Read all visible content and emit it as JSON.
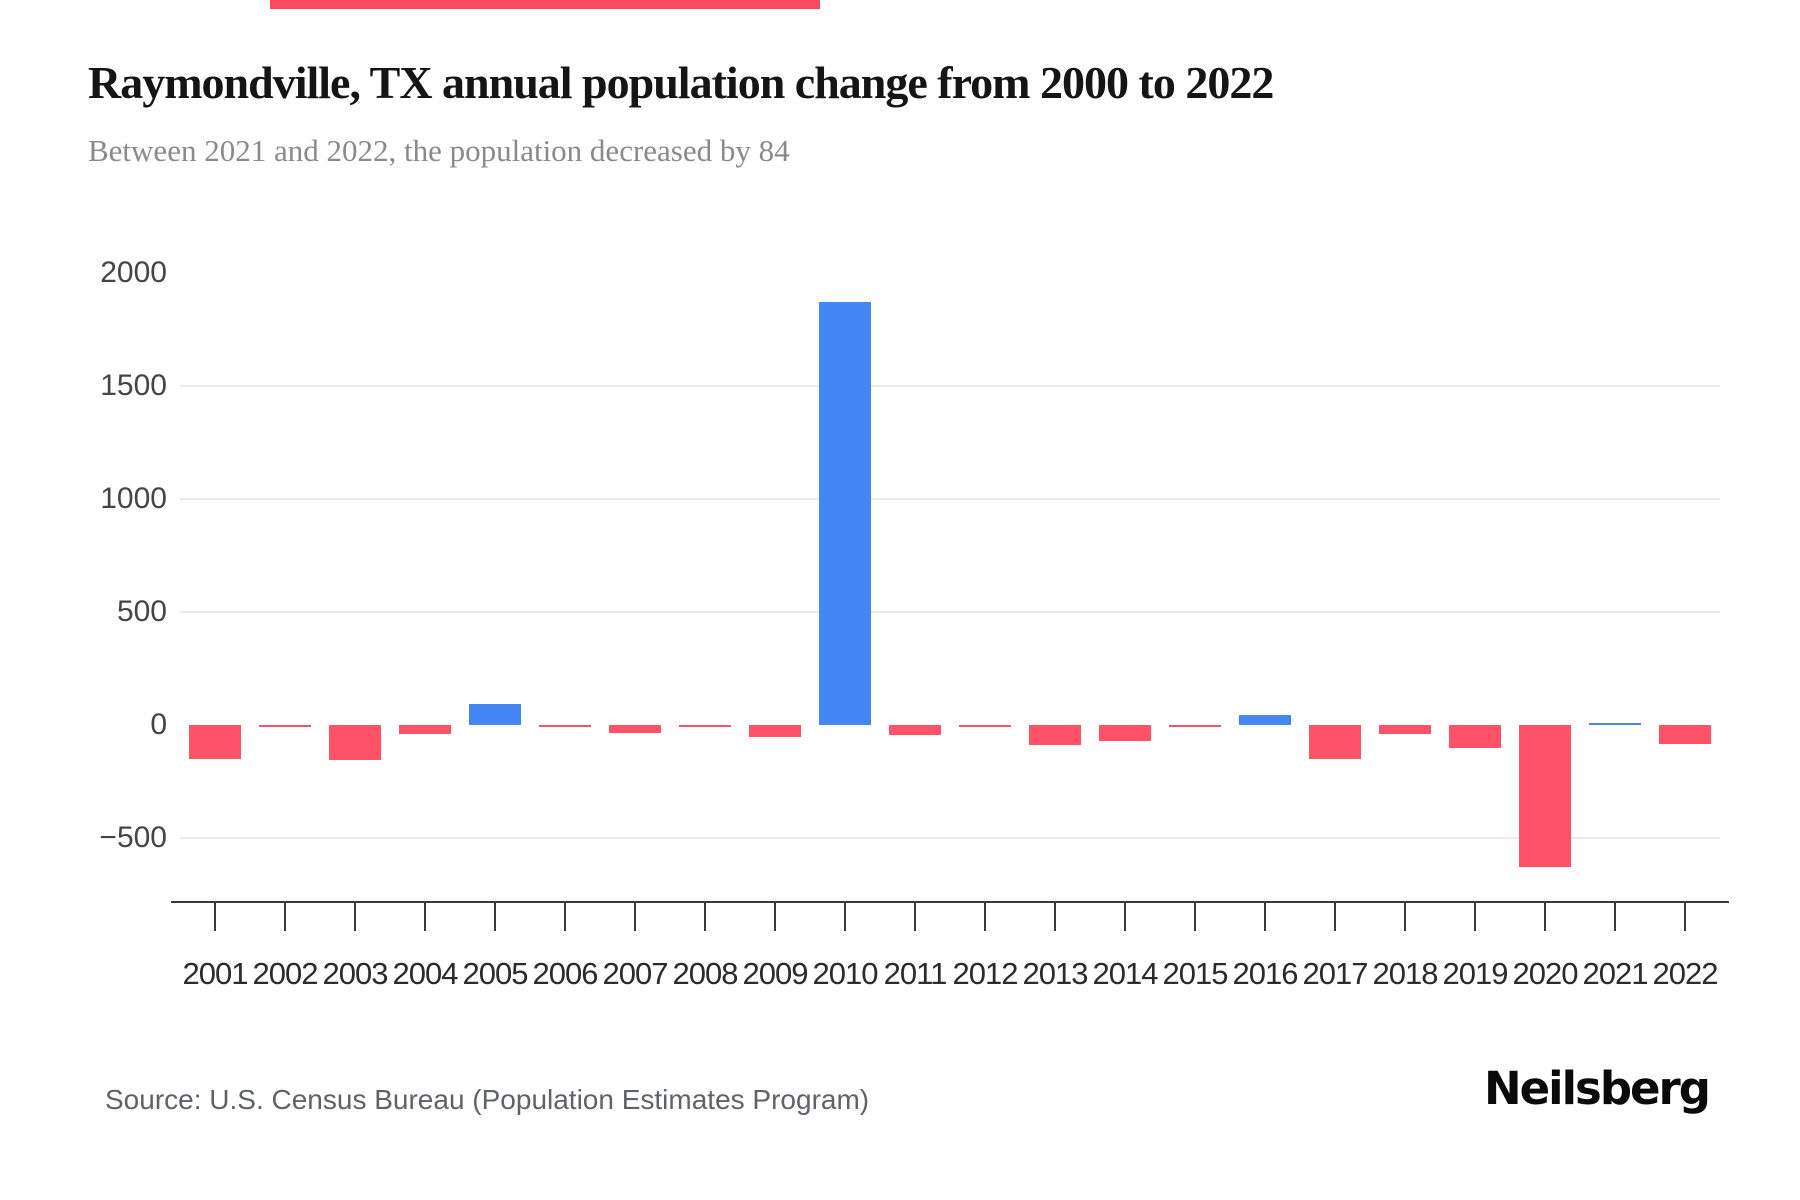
{
  "topbar": {
    "color": "#fa4a60"
  },
  "header": {
    "title": "Raymondville, TX annual population change from 2000 to 2022",
    "subtitle": "Between 2021 and 2022, the population decreased by 84"
  },
  "chart_data": {
    "type": "bar",
    "title": "Raymondville, TX annual population change from 2000 to 2022",
    "subtitle": "Between 2021 and 2022, the population decreased by 84",
    "categories": [
      "2001",
      "2002",
      "2003",
      "2004",
      "2005",
      "2006",
      "2007",
      "2008",
      "2009",
      "2010",
      "2011",
      "2012",
      "2013",
      "2014",
      "2015",
      "2016",
      "2017",
      "2018",
      "2019",
      "2020",
      "2021",
      "2022"
    ],
    "values": [
      -150,
      -8,
      -155,
      -40,
      95,
      -3,
      -35,
      -3,
      -55,
      1870,
      -45,
      -5,
      -90,
      -70,
      -6,
      45,
      -150,
      -38,
      -100,
      -630,
      8,
      -84
    ],
    "xlabel": "",
    "ylabel": "",
    "yticks": [
      2000,
      1500,
      1000,
      500,
      0,
      -500
    ],
    "gridline_ticks": [
      1500,
      1000,
      500,
      -500
    ],
    "ylim": [
      -700,
      2100
    ],
    "grid": "horizontal",
    "legend": "none",
    "positive_color": "#4486f4",
    "negative_color": "#fd5268",
    "axis_color": "#3a3a3a",
    "grid_color": "#ececec",
    "source": "Source: U.S. Census Bureau (Population Estimates Program)"
  },
  "footer": {
    "source": "Source: U.S. Census Bureau (Population Estimates Program)",
    "brand": "Neilsberg"
  }
}
